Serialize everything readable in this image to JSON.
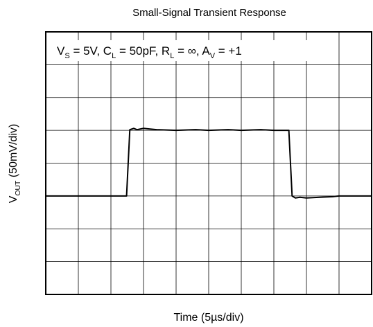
{
  "chart_data": {
    "type": "line",
    "title": "Small-Signal Transient Response",
    "x_label": "Time (5µs/div)",
    "y_label": [
      {
        "text": "V"
      },
      {
        "text": "OUT",
        "sub": true
      },
      {
        "text": " (50mV/div)"
      }
    ],
    "annotation": [
      {
        "text": "V"
      },
      {
        "text": "S",
        "sub": true
      },
      {
        "text": " = 5V, C"
      },
      {
        "text": "L",
        "sub": true
      },
      {
        "text": " = 50pF, R"
      },
      {
        "text": "L",
        "sub": true
      },
      {
        "text": " = ∞, A"
      },
      {
        "text": "V",
        "sub": true
      },
      {
        "text": " = +1"
      }
    ],
    "x": [
      0,
      12.4,
      12.9,
      13.5,
      14,
      15,
      16,
      17,
      20,
      23,
      25,
      28,
      30,
      33,
      35,
      37.3,
      37.8,
      38.3,
      39,
      40,
      42,
      44,
      45,
      47,
      50
    ],
    "series": [
      {
        "name": "VOUT",
        "color": "#000000",
        "values": [
          150,
          150,
          251,
          253,
          251,
          253,
          252,
          251,
          250,
          251,
          250,
          251,
          250,
          251,
          250,
          250,
          150,
          147,
          148,
          147,
          148,
          149,
          150,
          150,
          150
        ]
      }
    ],
    "xlim": [
      0,
      50
    ],
    "ylim": [
      0,
      400
    ],
    "xticks": [
      0,
      5,
      10,
      15,
      20,
      25,
      30,
      35,
      40,
      45,
      50
    ],
    "yticks": [
      0,
      50,
      100,
      150,
      200,
      250,
      300,
      350,
      400
    ],
    "grid": true
  }
}
